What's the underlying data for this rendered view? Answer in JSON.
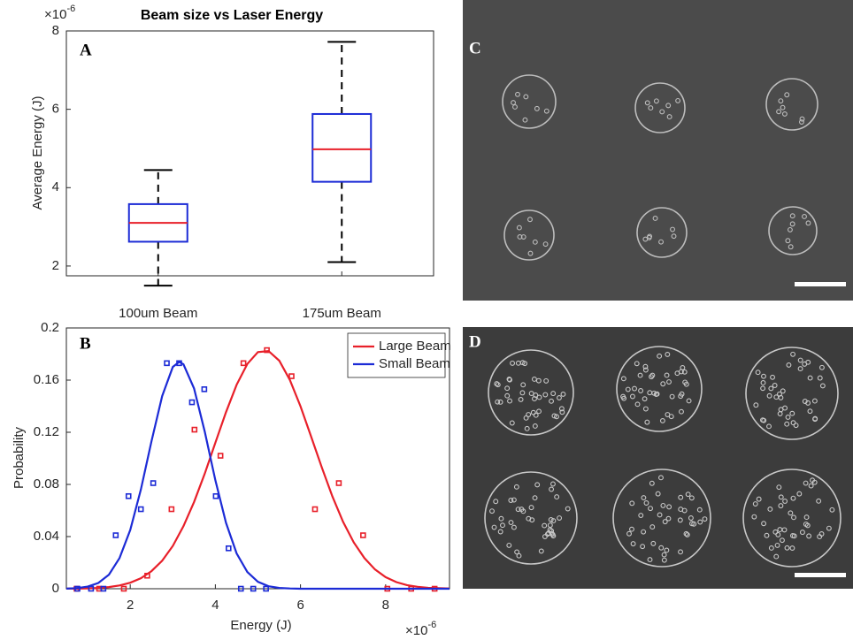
{
  "chart_data": [
    {
      "type": "box",
      "title": "Beam size vs Laser Energy",
      "panel_label": "A",
      "ylabel": "Average Energy (J)",
      "multiplier": {
        "base": "×10",
        "exponent": "-6"
      },
      "categories": [
        "100um Beam",
        "175um Beam"
      ],
      "min": [
        1.5,
        2.1
      ],
      "q1": [
        2.62,
        4.15
      ],
      "median": [
        3.1,
        4.98
      ],
      "q3": [
        3.58,
        5.88
      ],
      "max": [
        4.45,
        7.72
      ],
      "box_color": "#1c2bd6",
      "median_color": "#e8202a",
      "whisker_color": "#000000",
      "ylim": [
        1.75,
        8
      ],
      "yticks": [
        2,
        4,
        6,
        8
      ]
    },
    {
      "type": "scatter",
      "panel_label": "B",
      "xlabel": "Energy (J)",
      "ylabel": "Probability",
      "x_multiplier": {
        "base": "×10",
        "exponent": "-6"
      },
      "legend": "upper right",
      "xlim": [
        0.5,
        9.5
      ],
      "xticks": [
        2,
        4,
        6,
        8
      ],
      "ylim": [
        0,
        0.2
      ],
      "yticks": [
        0,
        0.04,
        0.08,
        0.12,
        0.16,
        0.2
      ],
      "series": [
        {
          "name": "Large Beam",
          "color": "#e8202a",
          "x": [
            0.74,
            1.27,
            1.85,
            2.4,
            2.97,
            3.51,
            4.12,
            4.66,
            5.21,
            5.79,
            6.34,
            6.9,
            7.47,
            8.04,
            8.6,
            9.15
          ],
          "values": [
            0,
            0,
            0,
            0.01,
            0.061,
            0.122,
            0.102,
            0.173,
            0.183,
            0.163,
            0.061,
            0.081,
            0.041,
            0,
            0,
            0
          ],
          "fit_x": [
            0.5,
            0.75,
            1.0,
            1.25,
            1.5,
            1.75,
            2.0,
            2.25,
            2.5,
            2.75,
            3.0,
            3.25,
            3.5,
            3.75,
            4.0,
            4.25,
            4.5,
            4.75,
            5.0,
            5.25,
            5.5,
            5.75,
            6.0,
            6.25,
            6.5,
            6.75,
            7.0,
            7.25,
            7.5,
            7.75,
            8.0,
            8.25,
            8.5,
            8.75,
            9.0,
            9.25,
            9.5
          ],
          "fit_values": [
            0.0001,
            0.0001,
            0.0003,
            0.0006,
            0.0013,
            0.0025,
            0.0046,
            0.008,
            0.0135,
            0.0215,
            0.0328,
            0.0479,
            0.0665,
            0.0883,
            0.112,
            0.1354,
            0.1564,
            0.1724,
            0.1815,
            0.1823,
            0.1749,
            0.1601,
            0.1399,
            0.1167,
            0.093,
            0.0707,
            0.0513,
            0.0355,
            0.0235,
            0.0148,
            0.0089,
            0.0051,
            0.0028,
            0.0015,
            0.0007,
            0.0004,
            0.0002
          ]
        },
        {
          "name": "Small Beam",
          "color": "#1c2bd6",
          "x": [
            0.76,
            1.08,
            1.37,
            1.66,
            1.96,
            2.25,
            2.54,
            2.86,
            3.15,
            3.45,
            3.74,
            4.01,
            4.31,
            4.6,
            4.89,
            5.19
          ],
          "values": [
            0,
            0,
            0,
            0.041,
            0.071,
            0.061,
            0.081,
            0.173,
            0.173,
            0.143,
            0.153,
            0.071,
            0.031,
            0,
            0,
            0
          ],
          "fit_x": [
            0.5,
            0.75,
            1.0,
            1.25,
            1.5,
            1.75,
            2.0,
            2.25,
            2.5,
            2.75,
            3.0,
            3.15,
            3.25,
            3.5,
            3.75,
            4.0,
            4.25,
            4.5,
            4.75,
            5.0,
            5.25,
            5.5,
            5.75,
            6.0,
            9.5
          ],
          "fit_values": [
            0.0001,
            0.0005,
            0.0016,
            0.0044,
            0.0108,
            0.0235,
            0.0451,
            0.0761,
            0.1131,
            0.1478,
            0.1701,
            0.174,
            0.1722,
            0.1536,
            0.1205,
            0.0832,
            0.0506,
            0.0271,
            0.0128,
            0.0053,
            0.0019,
            0.0006,
            0.0002,
            0,
            0
          ]
        }
      ]
    }
  ],
  "panels": [
    {
      "label": "C"
    },
    {
      "label": "D"
    }
  ]
}
